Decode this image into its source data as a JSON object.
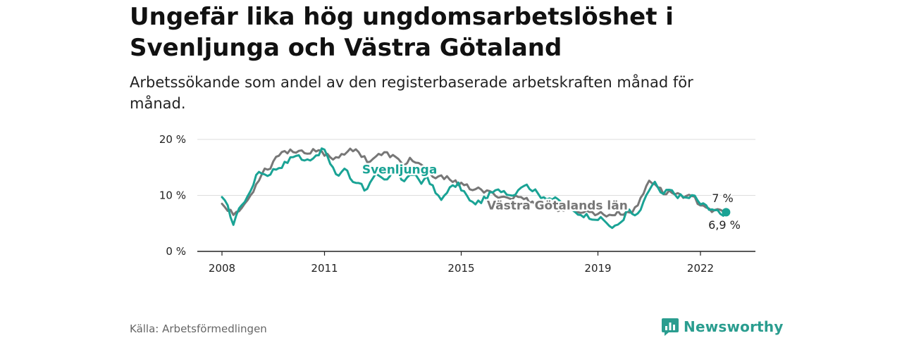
{
  "header": {
    "title": "Ungefär lika hög ungdomsarbetslöshet i Svenljunga och Västra Götaland",
    "subtitle": "Arbetssökande som andel av den registerbaserade arbetskraften månad för månad."
  },
  "footer": {
    "source": "Källa: Arbetsförmedlingen",
    "brand": "Newsworthy"
  },
  "colors": {
    "svenljunga": "#1aa395",
    "vastra_gotaland": "#777777",
    "grid": "#dddddd",
    "axis": "#222222",
    "brand": "#2a9d8f"
  },
  "chart_data": {
    "type": "line",
    "title": "Ungefär lika hög ungdomsarbetslöshet i Svenljunga och Västra Götaland",
    "xlabel": "",
    "ylabel": "",
    "xlim": [
      2008,
      2023
    ],
    "ylim": [
      0,
      20
    ],
    "y_ticks": [
      0,
      10,
      20
    ],
    "y_tick_labels": [
      "0 %",
      "10 %",
      "20 %"
    ],
    "x_ticks": [
      2008,
      2011,
      2015,
      2019,
      2022
    ],
    "x_tick_labels": [
      "2008",
      "2011",
      "2015",
      "2019",
      "2022"
    ],
    "grid": true,
    "x_start": 2008,
    "x_step": "monthly",
    "series": [
      {
        "name": "Svenljunga",
        "label": "Svenljunga",
        "end_label": "7 %",
        "anchors": [
          [
            2008.0,
            9.7
          ],
          [
            2008.2,
            7.5
          ],
          [
            2008.35,
            4.5
          ],
          [
            2008.5,
            8.0
          ],
          [
            2008.7,
            9.0
          ],
          [
            2008.9,
            12.0
          ],
          [
            2009.1,
            14.5
          ],
          [
            2009.3,
            13.5
          ],
          [
            2009.5,
            14.5
          ],
          [
            2009.8,
            15.5
          ],
          [
            2010.0,
            16.5
          ],
          [
            2010.2,
            17.5
          ],
          [
            2010.4,
            16.0
          ],
          [
            2010.7,
            17.0
          ],
          [
            2011.0,
            18.3
          ],
          [
            2011.2,
            15.0
          ],
          [
            2011.4,
            13.5
          ],
          [
            2011.6,
            15.0
          ],
          [
            2011.8,
            12.5
          ],
          [
            2012.0,
            12.5
          ],
          [
            2012.2,
            11.0
          ],
          [
            2012.5,
            13.5
          ],
          [
            2012.8,
            12.5
          ],
          [
            2013.1,
            15.0
          ],
          [
            2013.3,
            12.5
          ],
          [
            2013.6,
            14.0
          ],
          [
            2013.8,
            12.0
          ],
          [
            2014.0,
            13.5
          ],
          [
            2014.2,
            11.0
          ],
          [
            2014.4,
            9.0
          ],
          [
            2014.6,
            11.0
          ],
          [
            2014.9,
            12.0
          ],
          [
            2015.1,
            10.5
          ],
          [
            2015.3,
            8.5
          ],
          [
            2015.6,
            9.0
          ],
          [
            2015.9,
            10.5
          ],
          [
            2016.2,
            11.0
          ],
          [
            2016.5,
            10.0
          ],
          [
            2016.8,
            12.0
          ],
          [
            2017.0,
            11.5
          ],
          [
            2017.3,
            10.0
          ],
          [
            2017.6,
            9.5
          ],
          [
            2017.9,
            9.0
          ],
          [
            2018.1,
            8.0
          ],
          [
            2018.3,
            7.0
          ],
          [
            2018.6,
            6.5
          ],
          [
            2018.9,
            6.0
          ],
          [
            2019.2,
            5.5
          ],
          [
            2019.45,
            4.0
          ],
          [
            2019.7,
            5.5
          ],
          [
            2019.9,
            7.5
          ],
          [
            2020.1,
            6.0
          ],
          [
            2020.3,
            8.0
          ],
          [
            2020.5,
            11.0
          ],
          [
            2020.65,
            12.5
          ],
          [
            2020.85,
            10.0
          ],
          [
            2021.1,
            11.0
          ],
          [
            2021.3,
            10.0
          ],
          [
            2021.6,
            9.5
          ],
          [
            2021.8,
            10.0
          ],
          [
            2022.0,
            8.5
          ],
          [
            2022.2,
            8.0
          ],
          [
            2022.4,
            7.5
          ],
          [
            2022.6,
            6.5
          ],
          [
            2022.75,
            7.0
          ]
        ]
      },
      {
        "name": "Västra Götalands län",
        "label": "Västra Götalands län",
        "end_label": "6,9 %",
        "anchors": [
          [
            2008.0,
            8.5
          ],
          [
            2008.2,
            7.5
          ],
          [
            2008.4,
            6.5
          ],
          [
            2008.6,
            8.0
          ],
          [
            2008.8,
            9.5
          ],
          [
            2009.0,
            12.0
          ],
          [
            2009.2,
            14.5
          ],
          [
            2009.4,
            15.0
          ],
          [
            2009.6,
            17.0
          ],
          [
            2009.8,
            18.0
          ],
          [
            2010.0,
            17.8
          ],
          [
            2010.3,
            18.2
          ],
          [
            2010.5,
            17.0
          ],
          [
            2010.7,
            18.0
          ],
          [
            2011.0,
            17.5
          ],
          [
            2011.3,
            16.5
          ],
          [
            2011.5,
            17.5
          ],
          [
            2011.8,
            18.0
          ],
          [
            2012.0,
            17.8
          ],
          [
            2012.3,
            16.0
          ],
          [
            2012.5,
            17.0
          ],
          [
            2012.8,
            17.5
          ],
          [
            2013.0,
            17.0
          ],
          [
            2013.3,
            15.5
          ],
          [
            2013.5,
            16.5
          ],
          [
            2013.8,
            15.5
          ],
          [
            2014.0,
            14.0
          ],
          [
            2014.3,
            13.0
          ],
          [
            2014.6,
            13.5
          ],
          [
            2014.9,
            12.0
          ],
          [
            2015.2,
            11.5
          ],
          [
            2015.5,
            11.0
          ],
          [
            2015.8,
            10.5
          ],
          [
            2016.1,
            10.0
          ],
          [
            2016.4,
            9.5
          ],
          [
            2016.7,
            9.8
          ],
          [
            2017.0,
            9.0
          ],
          [
            2017.3,
            8.5
          ],
          [
            2017.6,
            8.0
          ],
          [
            2017.9,
            7.5
          ],
          [
            2018.2,
            7.5
          ],
          [
            2018.5,
            7.2
          ],
          [
            2018.8,
            7.0
          ],
          [
            2019.0,
            6.8
          ],
          [
            2019.3,
            6.5
          ],
          [
            2019.6,
            6.8
          ],
          [
            2019.9,
            7.0
          ],
          [
            2020.1,
            7.5
          ],
          [
            2020.3,
            10.0
          ],
          [
            2020.5,
            12.8
          ],
          [
            2020.7,
            12.0
          ],
          [
            2020.9,
            10.5
          ],
          [
            2021.2,
            10.5
          ],
          [
            2021.5,
            10.0
          ],
          [
            2021.8,
            9.5
          ],
          [
            2022.0,
            8.5
          ],
          [
            2022.2,
            8.0
          ],
          [
            2022.4,
            7.0
          ],
          [
            2022.6,
            7.2
          ],
          [
            2022.75,
            6.9
          ]
        ]
      }
    ]
  }
}
